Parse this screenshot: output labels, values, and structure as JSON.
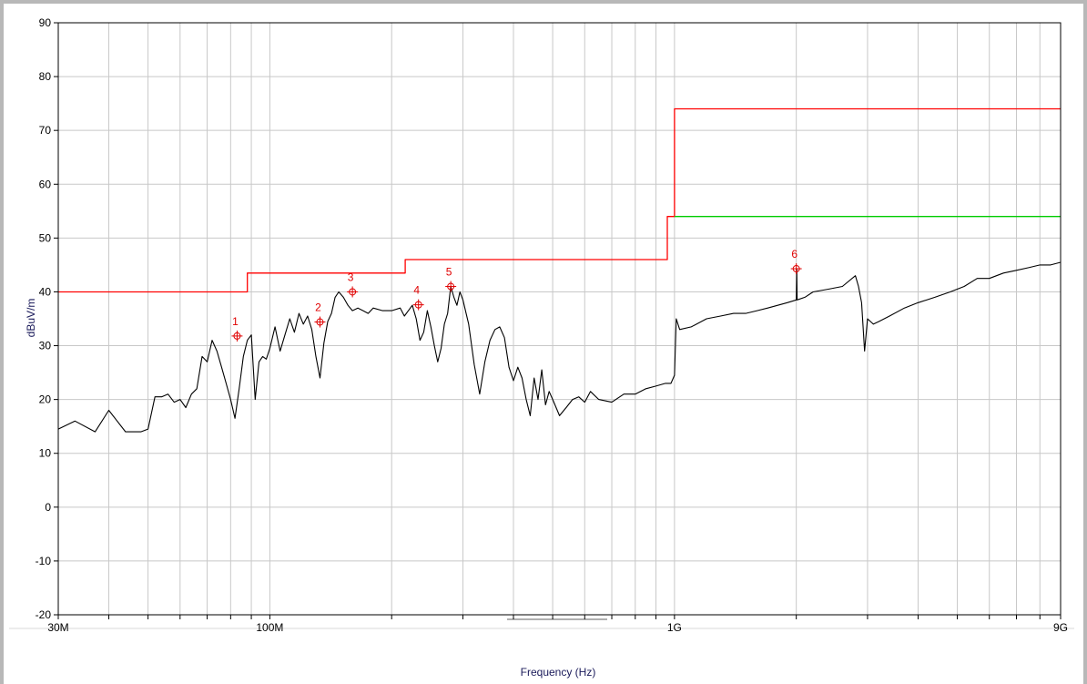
{
  "chart_data": {
    "type": "line",
    "title": "",
    "xlabel": "Frequency (Hz)",
    "ylabel": "dBuV/m",
    "xscale": "log",
    "xlim": [
      30000000,
      9000000000
    ],
    "ylim": [
      -20,
      90
    ],
    "grid": true,
    "y_ticks": [
      90,
      80,
      70,
      60,
      50,
      40,
      30,
      20,
      10,
      0,
      -10,
      -20
    ],
    "x_tick_labels": [
      {
        "value": 30000000,
        "label": "30M"
      },
      {
        "value": 100000000,
        "label": "100M"
      },
      {
        "value": 1000000000,
        "label": "1G"
      },
      {
        "value": 9000000000,
        "label": "9G"
      }
    ],
    "series": [
      {
        "color": "#000000",
        "x": [
          30000000,
          33000000,
          37000000,
          40000000,
          44000000,
          48000000,
          50000000,
          52000000,
          54000000,
          56000000,
          58000000,
          60000000,
          62000000,
          64000000,
          66000000,
          68000000,
          70000000,
          72000000,
          74000000,
          76000000,
          78000000,
          80000000,
          82000000,
          84000000,
          86000000,
          88000000,
          90000000,
          92000000,
          94000000,
          96000000,
          98000000,
          100000000,
          103000000,
          106000000,
          109000000,
          112000000,
          115000000,
          118000000,
          121000000,
          124000000,
          127000000,
          130000000,
          133000000,
          136000000,
          139000000,
          142000000,
          145000000,
          148000000,
          152000000,
          156000000,
          160000000,
          165000000,
          170000000,
          175000000,
          180000000,
          190000000,
          200000000,
          210000000,
          215000000,
          220000000,
          225000000,
          230000000,
          235000000,
          240000000,
          245000000,
          250000000,
          255000000,
          260000000,
          265000000,
          270000000,
          275000000,
          280000000,
          285000000,
          290000000,
          295000000,
          300000000,
          310000000,
          320000000,
          330000000,
          340000000,
          350000000,
          360000000,
          370000000,
          380000000,
          390000000,
          400000000,
          410000000,
          420000000,
          430000000,
          440000000,
          450000000,
          460000000,
          470000000,
          480000000,
          490000000,
          500000000,
          520000000,
          540000000,
          560000000,
          580000000,
          600000000,
          620000000,
          650000000,
          700000000,
          750000000,
          800000000,
          850000000,
          900000000,
          950000000,
          980000000,
          1000000000,
          1010000000,
          1030000000,
          1100000000,
          1200000000,
          1300000000,
          1400000000,
          1500000000,
          1600000000,
          1700000000,
          1800000000,
          1900000000,
          2000000000,
          2005000000,
          2010000000,
          2100000000,
          2200000000,
          2400000000,
          2600000000,
          2800000000,
          2850000000,
          2900000000,
          2950000000,
          3000000000,
          3100000000,
          3200000000,
          3400000000,
          3700000000,
          4000000000,
          4400000000,
          4800000000,
          5200000000,
          5600000000,
          6000000000,
          6500000000,
          7000000000,
          7500000000,
          8000000000,
          8500000000,
          9000000000
        ],
        "values": [
          14.5,
          16.0,
          14.0,
          18.0,
          14.0,
          14.0,
          14.5,
          20.5,
          20.5,
          21.0,
          19.5,
          20.0,
          18.5,
          21.0,
          22.0,
          28.0,
          27.0,
          31.0,
          29.0,
          26.0,
          23.0,
          20.0,
          16.5,
          22.0,
          28.0,
          31.0,
          32.0,
          20.0,
          27.0,
          28.0,
          27.5,
          29.5,
          33.5,
          29.0,
          32.0,
          35.0,
          32.5,
          36.0,
          34.0,
          35.5,
          33.0,
          28.0,
          24.0,
          30.5,
          34.5,
          36.0,
          39.0,
          40.0,
          39.0,
          37.5,
          36.5,
          37.0,
          36.5,
          36.0,
          37.0,
          36.5,
          36.5,
          37.0,
          35.5,
          36.5,
          37.5,
          35.0,
          31.0,
          32.5,
          36.5,
          33.5,
          30.0,
          27.0,
          29.5,
          34.0,
          36.0,
          41.0,
          39.0,
          37.5,
          40.0,
          38.5,
          34.0,
          26.5,
          21.0,
          27.0,
          31.0,
          33.0,
          33.5,
          31.5,
          26.0,
          23.5,
          26.0,
          24.0,
          20.0,
          17.0,
          24.0,
          20.0,
          25.5,
          19.0,
          21.5,
          20.0,
          17.0,
          18.5,
          20.0,
          20.5,
          19.5,
          21.5,
          20.0,
          19.5,
          21.0,
          21.0,
          22.0,
          22.5,
          23.0,
          23.0,
          24.5,
          35.0,
          33.0,
          33.5,
          35.0,
          35.5,
          36.0,
          36.0,
          36.5,
          37.0,
          37.5,
          38.0,
          38.5,
          44.3,
          38.5,
          39.0,
          40.0,
          40.5,
          41.0,
          43.0,
          41.0,
          38.0,
          29.0,
          35.0,
          34.0,
          34.5,
          35.5,
          37.0,
          38.0,
          39.0,
          40.0,
          41.0,
          42.5,
          42.5,
          43.5,
          44.0,
          44.5,
          45.0,
          45.0,
          45.5
        ]
      },
      {
        "color": "#ff0000",
        "x": [
          30000000,
          88000000,
          88000000,
          216000000,
          216000000,
          960000000,
          960000000,
          1000000000,
          1000000000,
          9000000000
        ],
        "values": [
          40.0,
          40.0,
          43.5,
          43.5,
          46.0,
          46.0,
          54.0,
          54.0,
          74.0,
          74.0
        ]
      },
      {
        "color": "#00cc00",
        "x": [
          1000000000,
          9000000000
        ],
        "values": [
          54.0,
          54.0
        ]
      }
    ],
    "markers": [
      {
        "label": "1",
        "x": 83000000,
        "y": 31.8
      },
      {
        "label": "2",
        "x": 133000000,
        "y": 34.4
      },
      {
        "label": "3",
        "x": 160000000,
        "y": 40.0
      },
      {
        "label": "4",
        "x": 233000000,
        "y": 37.6
      },
      {
        "label": "5",
        "x": 280000000,
        "y": 41.0
      },
      {
        "label": "6",
        "x": 2000000000,
        "y": 44.3
      }
    ]
  }
}
